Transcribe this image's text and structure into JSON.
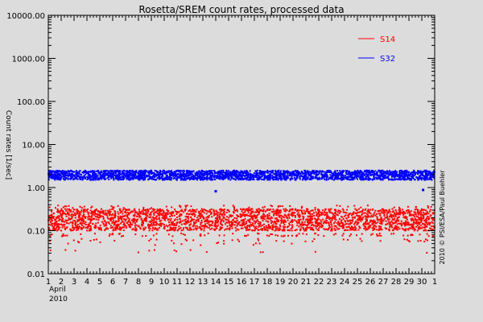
{
  "chart_data": {
    "type": "scatter",
    "title": "Rosetta/SREM count rates, processed data",
    "xlabel": "April\n2010",
    "ylabel": "Count rates [1/sec]",
    "credit": "2010 © PSI/ESA/Paul Buehler",
    "y_scale": "log",
    "ylim": [
      0.01,
      10000
    ],
    "y_ticks": [
      {
        "value": 10000,
        "label": "10000.00"
      },
      {
        "value": 1000,
        "label": "1000.00"
      },
      {
        "value": 100,
        "label": "100.00"
      },
      {
        "value": 10,
        "label": "10.00"
      },
      {
        "value": 1,
        "label": "1.00"
      },
      {
        "value": 0.1,
        "label": "0.10"
      },
      {
        "value": 0.01,
        "label": "0.01"
      }
    ],
    "x_tick_labels": [
      "1",
      "2",
      "3",
      "4",
      "5",
      "6",
      "7",
      "8",
      "9",
      "10",
      "11",
      "12",
      "13",
      "14",
      "15",
      "16",
      "17",
      "18",
      "19",
      "20",
      "21",
      "22",
      "23",
      "24",
      "25",
      "26",
      "27",
      "28",
      "29",
      "30",
      "1"
    ],
    "x_month_label": "April",
    "x_year_label": "2010",
    "grid": false,
    "legend_position": "top-right",
    "series": [
      {
        "name": "S14",
        "color": "#ff0000",
        "typical_range": [
          0.1,
          0.32
        ],
        "typical_value": 0.2,
        "lower_tail_values": [
          0.08,
          0.06,
          0.05,
          0.033
        ],
        "peak_values": [
          0.35
        ]
      },
      {
        "name": "S32",
        "color": "#0000ff",
        "typical_range": [
          1.5,
          2.5
        ],
        "typical_value": 2.0,
        "outliers": [
          {
            "day": 13.0,
            "value": 0.82
          },
          {
            "day": 29.1,
            "value": 0.88
          }
        ]
      }
    ]
  }
}
